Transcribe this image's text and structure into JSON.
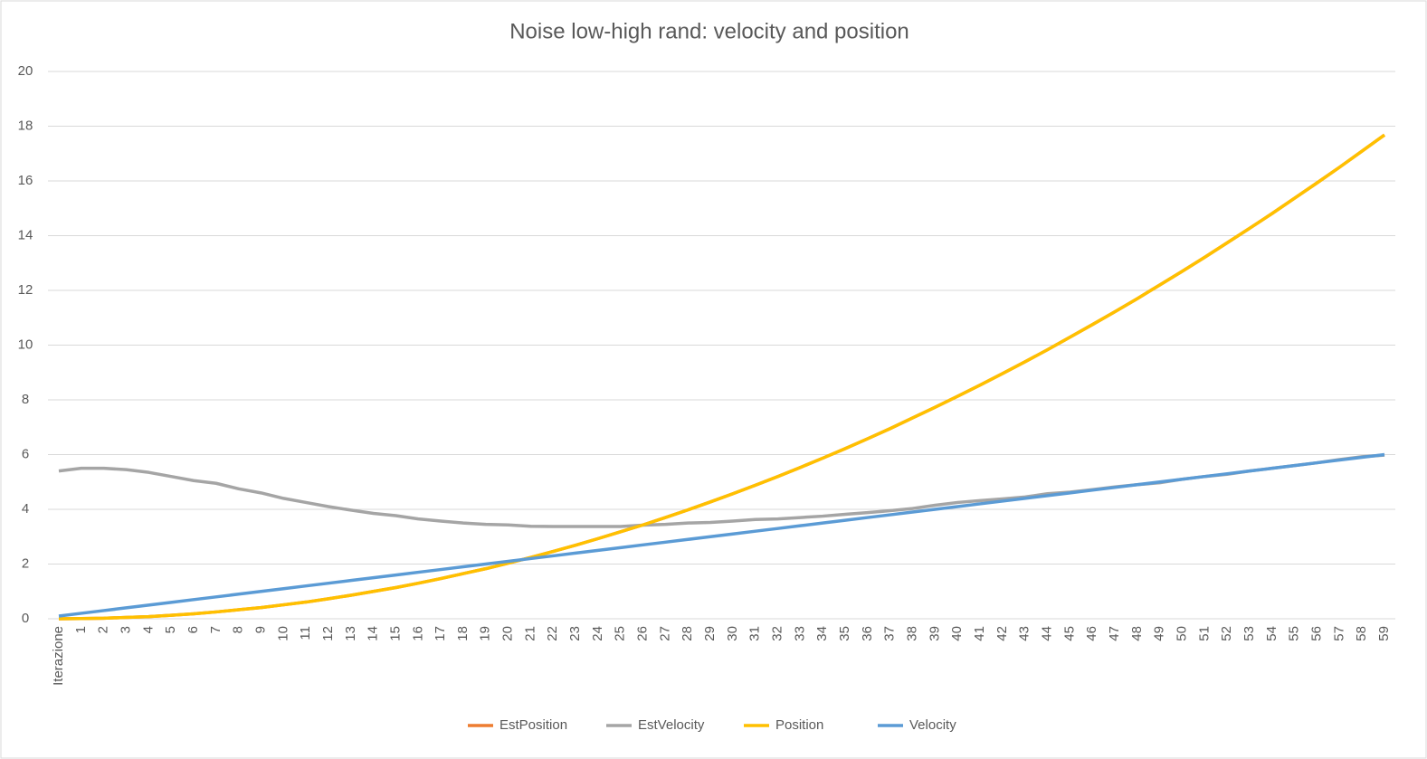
{
  "chart_data": {
    "type": "line",
    "title": "Noise low-high rand: velocity and position",
    "categories": [
      "Iterazione",
      "1",
      "2",
      "3",
      "4",
      "5",
      "6",
      "7",
      "8",
      "9",
      "10",
      "11",
      "12",
      "13",
      "14",
      "15",
      "16",
      "17",
      "18",
      "19",
      "20",
      "21",
      "22",
      "23",
      "24",
      "25",
      "26",
      "27",
      "28",
      "29",
      "30",
      "31",
      "32",
      "33",
      "34",
      "35",
      "36",
      "37",
      "38",
      "39",
      "40",
      "41",
      "42",
      "43",
      "44",
      "45",
      "46",
      "47",
      "48",
      "49",
      "50",
      "51",
      "52",
      "53",
      "54",
      "55",
      "56",
      "57",
      "58",
      "59"
    ],
    "series": [
      {
        "name": "EstPosition",
        "color": "#ed7d31",
        "values": [
          0,
          0.01,
          0.02,
          0.05,
          0.08,
          0.13,
          0.18,
          0.25,
          0.33,
          0.41,
          0.51,
          0.61,
          0.73,
          0.86,
          1.0,
          1.14,
          1.3,
          1.47,
          1.65,
          1.83,
          2.03,
          2.24,
          2.46,
          2.69,
          2.93,
          3.18,
          3.43,
          3.7,
          3.98,
          4.27,
          4.57,
          4.88,
          5.2,
          5.53,
          5.87,
          6.22,
          6.58,
          6.95,
          7.34,
          7.73,
          8.13,
          8.54,
          8.96,
          9.39,
          9.83,
          10.29,
          10.75,
          11.22,
          11.7,
          12.2,
          12.7,
          13.21,
          13.74,
          14.27,
          14.81,
          15.37,
          15.93,
          16.5,
          17.09,
          17.68
        ]
      },
      {
        "name": "EstVelocity",
        "color": "#a5a5a5",
        "values": [
          5.4,
          5.5,
          5.5,
          5.45,
          5.35,
          5.2,
          5.05,
          4.95,
          4.75,
          4.6,
          4.4,
          4.25,
          4.1,
          3.97,
          3.85,
          3.77,
          3.65,
          3.57,
          3.5,
          3.45,
          3.43,
          3.38,
          3.37,
          3.37,
          3.37,
          3.37,
          3.42,
          3.45,
          3.5,
          3.52,
          3.57,
          3.63,
          3.65,
          3.7,
          3.75,
          3.82,
          3.88,
          3.95,
          4.03,
          4.15,
          4.25,
          4.32,
          4.38,
          4.45,
          4.57,
          4.63,
          4.72,
          4.82,
          4.9,
          4.97,
          5.1,
          5.2,
          5.28,
          5.4,
          5.5,
          5.6,
          5.7,
          5.82,
          5.92,
          5.98
        ]
      },
      {
        "name": "Position",
        "color": "#ffc000",
        "values": [
          0,
          0.01,
          0.02,
          0.05,
          0.08,
          0.13,
          0.18,
          0.25,
          0.33,
          0.41,
          0.51,
          0.61,
          0.73,
          0.86,
          1.0,
          1.14,
          1.3,
          1.47,
          1.65,
          1.83,
          2.03,
          2.24,
          2.46,
          2.69,
          2.93,
          3.18,
          3.43,
          3.7,
          3.98,
          4.27,
          4.57,
          4.88,
          5.2,
          5.53,
          5.87,
          6.22,
          6.58,
          6.95,
          7.34,
          7.73,
          8.13,
          8.54,
          8.96,
          9.39,
          9.83,
          10.29,
          10.75,
          11.22,
          11.7,
          12.2,
          12.7,
          13.21,
          13.74,
          14.27,
          14.81,
          15.37,
          15.93,
          16.5,
          17.09,
          17.68
        ]
      },
      {
        "name": "Velocity",
        "color": "#5b9bd5",
        "values": [
          0.1,
          0.2,
          0.3,
          0.4,
          0.5,
          0.6,
          0.7,
          0.8,
          0.9,
          1.0,
          1.1,
          1.2,
          1.3,
          1.4,
          1.5,
          1.6,
          1.7,
          1.8,
          1.9,
          2.0,
          2.1,
          2.2,
          2.3,
          2.4,
          2.5,
          2.6,
          2.7,
          2.8,
          2.9,
          3.0,
          3.1,
          3.2,
          3.3,
          3.4,
          3.5,
          3.6,
          3.7,
          3.8,
          3.9,
          4.0,
          4.1,
          4.2,
          4.3,
          4.4,
          4.5,
          4.6,
          4.7,
          4.8,
          4.9,
          5.0,
          5.1,
          5.2,
          5.3,
          5.4,
          5.5,
          5.6,
          5.7,
          5.8,
          5.9,
          6.0
        ]
      }
    ],
    "ylim": [
      0,
      20
    ],
    "yticks": [
      0,
      2,
      4,
      6,
      8,
      10,
      12,
      14,
      16,
      18,
      20
    ],
    "grid": true,
    "legend": "bottom"
  }
}
